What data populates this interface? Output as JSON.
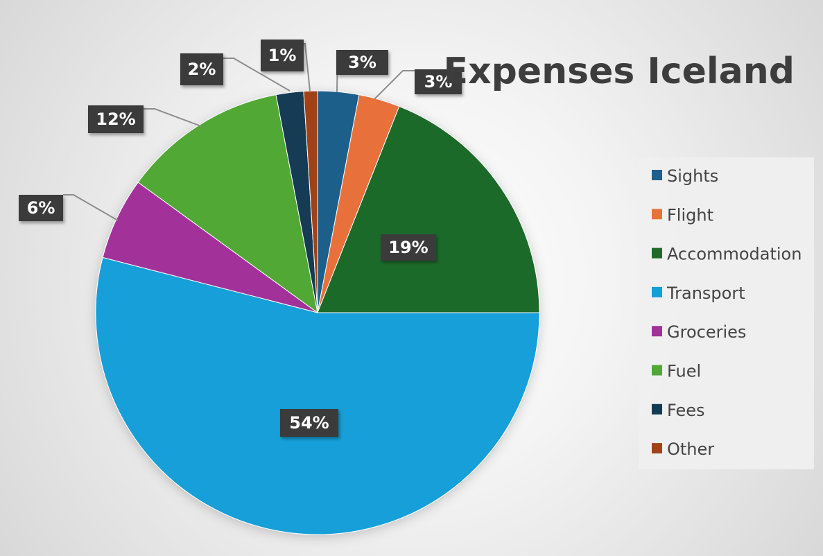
{
  "chart_data": {
    "type": "pie",
    "title": "Expenses Iceland",
    "legend_position": "right",
    "data_labels": "percent",
    "slices": [
      {
        "name": "Sights",
        "value": 3,
        "label": "3%",
        "color": "#1f5f8b"
      },
      {
        "name": "Flight",
        "value": 3,
        "label": "3%",
        "color": "#e8713a"
      },
      {
        "name": "Accommodation",
        "value": 19,
        "label": "19%",
        "color": "#1f6b2a"
      },
      {
        "name": "Transport",
        "value": 54,
        "label": "54%",
        "color": "#139fd8"
      },
      {
        "name": "Groceries",
        "value": 6,
        "label": "6%",
        "color": "#a2319a"
      },
      {
        "name": "Fuel",
        "value": 12,
        "label": "12%",
        "color": "#51a834"
      },
      {
        "name": "Fees",
        "value": 2,
        "label": "2%",
        "color": "#123a54"
      },
      {
        "name": "Other",
        "value": 1,
        "label": "1%",
        "color": "#a14319"
      }
    ]
  }
}
